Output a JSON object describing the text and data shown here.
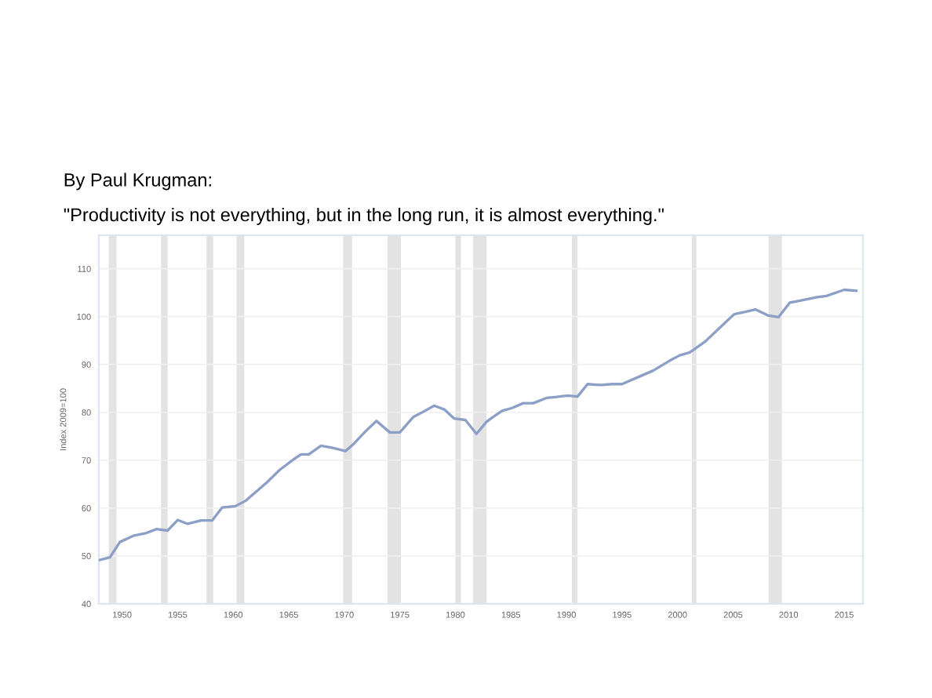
{
  "chart_data": {
    "type": "line",
    "title": "By Paul Krugman:",
    "subtitle": "\"Productivity is not everything, but in the long run, it is almost everything.\"",
    "ylabel": "Index 2009=100",
    "series": [
      {
        "color": "#8c9fc6",
        "x": [
          1947.9,
          1948.9,
          1949.8,
          1951.0,
          1952.2,
          1953.1,
          1954.1,
          1955.0,
          1955.9,
          1957.1,
          1958.1,
          1959.0,
          1960.2,
          1961.1,
          1962.0,
          1963.0,
          1964.2,
          1965.4,
          1966.1,
          1966.8,
          1967.9,
          1968.9,
          1970.1,
          1970.8,
          1971.9,
          1972.9,
          1974.1,
          1975.0,
          1976.2,
          1977.1,
          1978.1,
          1979.0,
          1979.9,
          1980.9,
          1981.9,
          1982.8,
          1983.2,
          1984.2,
          1985.1,
          1986.1,
          1987.0,
          1988.2,
          1989.1,
          1990.1,
          1991.0,
          1991.9,
          1993.1,
          1994.1,
          1995.0,
          1996.2,
          1997.8,
          1999.3,
          2000.2,
          2001.1,
          2002.5,
          2004.0,
          2005.1,
          2006.1,
          2007.0,
          2008.2,
          2009.1,
          2010.1,
          2011.2,
          2012.4,
          2013.4,
          2015.0,
          2016.1
        ],
        "values": [
          49.1,
          49.7,
          52.9,
          54.2,
          54.8,
          55.6,
          55.3,
          57.5,
          56.7,
          57.4,
          57.4,
          60.1,
          60.4,
          61.5,
          63.3,
          65.3,
          68.0,
          70.1,
          71.2,
          71.2,
          73.0,
          72.6,
          71.9,
          73.3,
          76.0,
          78.2,
          75.8,
          75.8,
          79.0,
          80.1,
          81.4,
          80.6,
          78.7,
          78.4,
          75.5,
          78.0,
          78.7,
          80.3,
          80.9,
          81.9,
          81.9,
          83.0,
          83.2,
          83.5,
          83.3,
          85.9,
          85.7,
          85.9,
          85.9,
          87.1,
          88.7,
          90.8,
          91.9,
          92.5,
          94.8,
          98.1,
          100.5,
          101.0,
          101.5,
          100.2,
          99.9,
          102.9,
          103.4,
          104.0,
          104.3,
          105.6,
          105.4
        ]
      }
    ],
    "bands": [
      {
        "axis": "x",
        "from": 1948.8,
        "to": 1949.5,
        "color": "#e3e3e3"
      },
      {
        "axis": "x",
        "from": 1953.5,
        "to": 1954.1,
        "color": "#e3e3e3"
      },
      {
        "axis": "x",
        "from": 1957.6,
        "to": 1958.2,
        "color": "#e3e3e3"
      },
      {
        "axis": "x",
        "from": 1960.3,
        "to": 1961.0,
        "color": "#e3e3e3"
      },
      {
        "axis": "x",
        "from": 1969.9,
        "to": 1970.7,
        "color": "#e3e3e3"
      },
      {
        "axis": "x",
        "from": 1973.9,
        "to": 1975.1,
        "color": "#e3e3e3"
      },
      {
        "axis": "x",
        "from": 1980.0,
        "to": 1980.5,
        "color": "#e3e3e3"
      },
      {
        "axis": "x",
        "from": 1981.6,
        "to": 1982.8,
        "color": "#e3e3e3"
      },
      {
        "axis": "x",
        "from": 1990.5,
        "to": 1991.0,
        "color": "#e3e3e3"
      },
      {
        "axis": "x",
        "from": 2001.3,
        "to": 2001.7,
        "color": "#e3e3e3"
      },
      {
        "axis": "x",
        "from": 2008.2,
        "to": 2009.4,
        "color": "#e3e3e3"
      }
    ],
    "xlim": [
      1947.9,
      2016.7
    ],
    "xticks": [
      1950,
      1955,
      1960,
      1965,
      1970,
      1975,
      1980,
      1985,
      1990,
      1995,
      2000,
      2005,
      2010,
      2015
    ],
    "ylim": [
      40,
      117
    ],
    "yticks": [
      40,
      50,
      60,
      70,
      80,
      90,
      100,
      110
    ],
    "grid": "y",
    "legend": false,
    "marker": "none",
    "line_style": "solid"
  }
}
